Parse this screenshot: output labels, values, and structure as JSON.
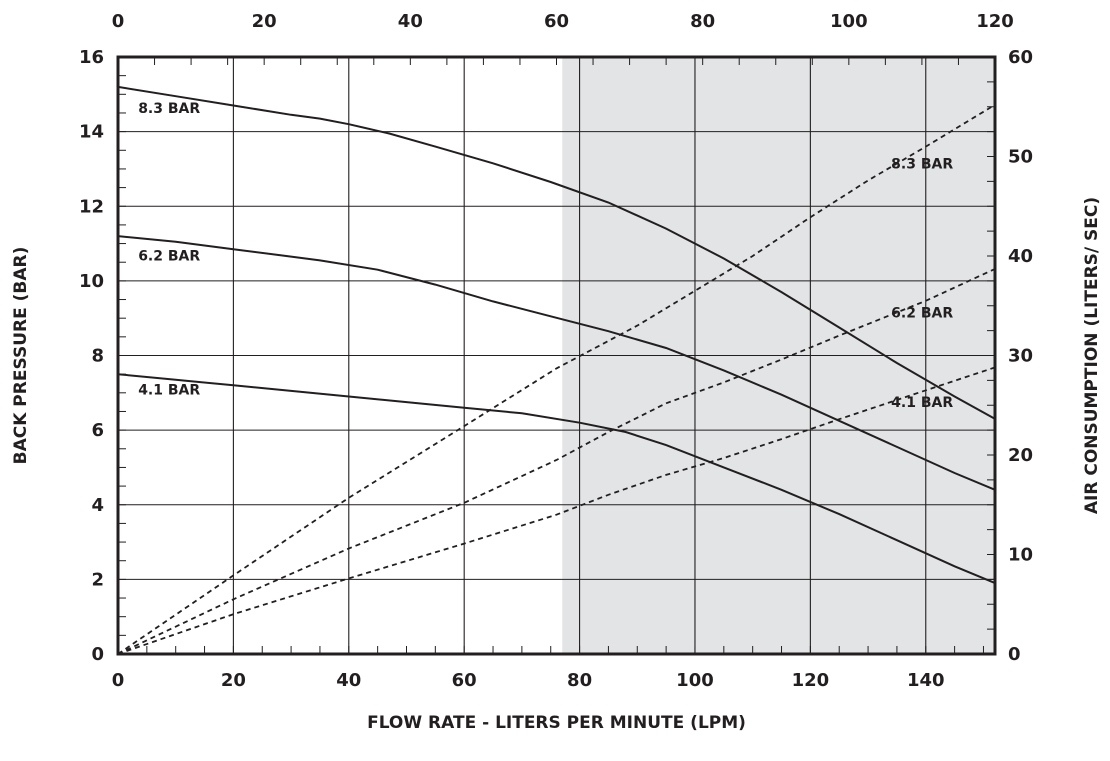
{
  "chart_data": {
    "type": "line",
    "title": "",
    "xlabel": "FLOW RATE - LITERS PER MINUTE (LPM)",
    "ylabel": "BACK PRESSURE (BAR)",
    "y2label": "AIR CONSUMPTION (LITERS/ SEC)",
    "xlim": [
      0,
      152
    ],
    "ylim": [
      0,
      16
    ],
    "x2lim": [
      0,
      120
    ],
    "y2lim": [
      0,
      60
    ],
    "x_ticks": [
      0,
      20,
      40,
      60,
      80,
      100,
      120,
      140
    ],
    "y_ticks": [
      0,
      2,
      4,
      6,
      8,
      10,
      12,
      14,
      16
    ],
    "x2_ticks": [
      0,
      20,
      40,
      60,
      80,
      100,
      120
    ],
    "y2_ticks": [
      0,
      10,
      20,
      30,
      40,
      50,
      60
    ],
    "x_tick_labels": [
      "0",
      "20",
      "40",
      "60",
      "80",
      "100",
      "120",
      "140"
    ],
    "y_tick_labels": [
      "0",
      "2",
      "4",
      "6",
      "8",
      "10",
      "12",
      "14",
      "16"
    ],
    "x2_tick_labels": [
      "0",
      "20",
      "40",
      "60",
      "80",
      "100",
      "120"
    ],
    "y2_tick_labels": [
      "0",
      "10",
      "20",
      "30",
      "40",
      "50",
      "60"
    ],
    "grid": true,
    "shaded_region": {
      "x_from": 77,
      "x_to": 152,
      "color": "#e2e4e5"
    },
    "pressure_series": [
      {
        "label": "8.3 BAR",
        "label_at": [
          3.5,
          14.5
        ],
        "points": [
          [
            0,
            15.2
          ],
          [
            10,
            14.95
          ],
          [
            20,
            14.7
          ],
          [
            30,
            14.45
          ],
          [
            35,
            14.35
          ],
          [
            40,
            14.2
          ],
          [
            47,
            13.95
          ],
          [
            55,
            13.6
          ],
          [
            65,
            13.15
          ],
          [
            75,
            12.65
          ],
          [
            85,
            12.1
          ],
          [
            95,
            11.4
          ],
          [
            105,
            10.6
          ],
          [
            115,
            9.7
          ],
          [
            125,
            8.75
          ],
          [
            135,
            7.8
          ],
          [
            145,
            6.9
          ],
          [
            152,
            6.3
          ]
        ]
      },
      {
        "label": "6.2 BAR",
        "label_at": [
          3.5,
          10.55
        ],
        "points": [
          [
            0,
            11.2
          ],
          [
            10,
            11.05
          ],
          [
            20,
            10.85
          ],
          [
            30,
            10.65
          ],
          [
            35,
            10.55
          ],
          [
            45,
            10.3
          ],
          [
            55,
            9.9
          ],
          [
            65,
            9.45
          ],
          [
            75,
            9.05
          ],
          [
            85,
            8.65
          ],
          [
            95,
            8.2
          ],
          [
            105,
            7.6
          ],
          [
            115,
            6.95
          ],
          [
            125,
            6.25
          ],
          [
            135,
            5.55
          ],
          [
            145,
            4.85
          ],
          [
            152,
            4.4
          ]
        ]
      },
      {
        "label": "4.1 BAR",
        "label_at": [
          3.5,
          6.95
        ],
        "points": [
          [
            0,
            7.5
          ],
          [
            10,
            7.35
          ],
          [
            20,
            7.2
          ],
          [
            30,
            7.05
          ],
          [
            40,
            6.9
          ],
          [
            50,
            6.75
          ],
          [
            60,
            6.6
          ],
          [
            70,
            6.45
          ],
          [
            80,
            6.2
          ],
          [
            88,
            5.95
          ],
          [
            95,
            5.6
          ],
          [
            105,
            5.0
          ],
          [
            115,
            4.4
          ],
          [
            125,
            3.75
          ],
          [
            135,
            3.05
          ],
          [
            145,
            2.35
          ],
          [
            152,
            1.9
          ]
        ]
      }
    ],
    "air_series": [
      {
        "label": "8.3 BAR",
        "label_at": [
          134,
          48.8
        ],
        "points": [
          [
            0,
            0
          ],
          [
            20,
            7.9
          ],
          [
            40,
            15.7
          ],
          [
            60,
            22.9
          ],
          [
            76,
            28.7
          ],
          [
            90,
            33.0
          ],
          [
            100,
            36.5
          ],
          [
            110,
            40.0
          ],
          [
            120,
            43.9
          ],
          [
            130,
            47.6
          ],
          [
            140,
            51.0
          ],
          [
            152,
            55.2
          ]
        ]
      },
      {
        "label": "6.2 BAR",
        "label_at": [
          134,
          33.8
        ],
        "points": [
          [
            0,
            0
          ],
          [
            20,
            5.5
          ],
          [
            40,
            10.6
          ],
          [
            60,
            15.2
          ],
          [
            76,
            19.5
          ],
          [
            85,
            22.3
          ],
          [
            95,
            25.2
          ],
          [
            105,
            27.3
          ],
          [
            115,
            29.6
          ],
          [
            125,
            32.0
          ],
          [
            140,
            35.5
          ],
          [
            152,
            38.7
          ]
        ]
      },
      {
        "label": "4.1 BAR",
        "label_at": [
          134,
          24.8
        ],
        "points": [
          [
            0,
            0
          ],
          [
            20,
            4.0
          ],
          [
            40,
            7.6
          ],
          [
            60,
            11.1
          ],
          [
            76,
            14.0
          ],
          [
            85,
            16.0
          ],
          [
            95,
            18.0
          ],
          [
            105,
            19.7
          ],
          [
            115,
            21.6
          ],
          [
            125,
            23.6
          ],
          [
            140,
            26.5
          ],
          [
            152,
            28.8
          ]
        ]
      }
    ]
  }
}
